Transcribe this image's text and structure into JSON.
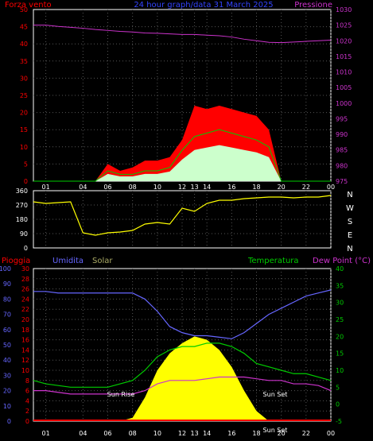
{
  "header": {
    "left_title": "Forza vento",
    "center_title": "24 hour graph/data  31 March 2025",
    "right_title": "Pressione"
  },
  "colors": {
    "wind_gust": "#ff0000",
    "wind_avg": "#00cc00",
    "wind_fill": "#ccffcc",
    "pressure": "#cc33cc",
    "direction": "#ffff00",
    "humidity": "#6666ff",
    "temperature": "#00cc00",
    "dewpoint": "#cc33cc",
    "solar": "#ffff00",
    "rain": "#ff0000",
    "axis_left": "#ff0000",
    "axis_right_pressure": "#cc33cc",
    "axis_right_temp": "#00cc00",
    "axis_humidity": "#6666ff",
    "frame": "#ffffff"
  },
  "x_ticks": [
    "01",
    "04",
    "06",
    "08",
    "10",
    "12",
    "13",
    "14",
    "16",
    "18",
    "20",
    "22",
    "00"
  ],
  "chart_data": [
    {
      "type": "line",
      "title": "",
      "panel": "wind-pressure",
      "ylabel": "Forza vento",
      "ylabel_right": "Pressione",
      "ylim": [
        0,
        50
      ],
      "ylim_right": [
        975,
        1030
      ],
      "yticks_left": [
        0,
        5,
        10,
        15,
        20,
        25,
        30,
        35,
        40,
        45,
        50
      ],
      "yticks_right": [
        975,
        980,
        985,
        990,
        995,
        1000,
        1005,
        1010,
        1015,
        1020,
        1025,
        1030
      ],
      "x": [
        0,
        1,
        2,
        3,
        4,
        5,
        6,
        7,
        8,
        9,
        10,
        11,
        12,
        13,
        14,
        15,
        16,
        17,
        18,
        19,
        20,
        21,
        22,
        23,
        24
      ],
      "series": [
        {
          "name": "gust",
          "axis": "left",
          "values": [
            0,
            0,
            0,
            0,
            0,
            0,
            5,
            3,
            4,
            6,
            6,
            7,
            12,
            22,
            21,
            22,
            21,
            20,
            19,
            15,
            0,
            0,
            0,
            0,
            0
          ]
        },
        {
          "name": "average",
          "axis": "left",
          "values": [
            0,
            0,
            0,
            0,
            0,
            0,
            3,
            2,
            2,
            3,
            3,
            4,
            9,
            13,
            14,
            15,
            14,
            13,
            12,
            10,
            0,
            0,
            0,
            0,
            0
          ]
        },
        {
          "name": "pressure",
          "axis": "right",
          "values": [
            1025,
            1025,
            1024.6,
            1024.3,
            1024,
            1023.6,
            1023.3,
            1023,
            1022.8,
            1022.5,
            1022.4,
            1022.2,
            1022,
            1022,
            1021.8,
            1021.6,
            1021.2,
            1020.5,
            1020,
            1019.5,
            1019.4,
            1019.6,
            1019.8,
            1020,
            1020.2
          ]
        }
      ],
      "grid": true
    },
    {
      "type": "line",
      "title": "",
      "panel": "wind-direction",
      "ylim": [
        0,
        360
      ],
      "yticks_left": [
        0,
        90,
        180,
        270,
        360
      ],
      "direction_labels": [
        "N",
        "W",
        "S",
        "E",
        "N"
      ],
      "x": [
        0,
        1,
        2,
        3,
        4,
        5,
        6,
        7,
        8,
        9,
        10,
        11,
        12,
        13,
        14,
        15,
        16,
        17,
        18,
        19,
        20,
        21,
        22,
        23,
        24
      ],
      "series": [
        {
          "name": "direction",
          "values": [
            290,
            280,
            285,
            290,
            95,
            80,
            95,
            100,
            110,
            150,
            160,
            150,
            250,
            230,
            280,
            300,
            300,
            310,
            315,
            320,
            320,
            315,
            320,
            320,
            330
          ]
        }
      ],
      "grid": true
    },
    {
      "type": "line",
      "title": "",
      "panel": "rain-humidity-solar-temperature",
      "labels": {
        "rain": "Pioggia",
        "humidity": "Umidita",
        "solar": "Solar",
        "temperature": "Temperatura",
        "dewpoint": "Dew Point (°C)"
      },
      "ylim_humidity": [
        0,
        100
      ],
      "ylim_rain": [
        0,
        30
      ],
      "ylim_temp": [
        -5,
        40
      ],
      "yticks_humidity": [
        0,
        10,
        20,
        30,
        40,
        50,
        60,
        70,
        80,
        90,
        100
      ],
      "yticks_rain": [
        0,
        2,
        4,
        6,
        8,
        10,
        12,
        14,
        16,
        18,
        20,
        22,
        24,
        26,
        28,
        30
      ],
      "yticks_temp": [
        -5,
        0,
        5,
        10,
        15,
        20,
        25,
        30,
        35,
        40
      ],
      "x": [
        0,
        1,
        2,
        3,
        4,
        5,
        6,
        7,
        8,
        9,
        10,
        11,
        12,
        13,
        14,
        15,
        16,
        17,
        18,
        19,
        20,
        21,
        22,
        23,
        24
      ],
      "series": [
        {
          "name": "humidity",
          "axis": "humidity",
          "values": [
            85,
            85,
            84,
            84,
            84,
            84,
            84,
            84,
            84,
            80,
            72,
            62,
            58,
            56,
            56,
            55,
            54,
            58,
            64,
            70,
            74,
            78,
            82,
            84,
            86
          ]
        },
        {
          "name": "temperature",
          "axis": "temp",
          "values": [
            7,
            6,
            5.5,
            5,
            5,
            5,
            5,
            6,
            7,
            10,
            14,
            16,
            17,
            17,
            18,
            18,
            17,
            15,
            12,
            11,
            10,
            9,
            9,
            8,
            7
          ]
        },
        {
          "name": "dewpoint",
          "axis": "temp",
          "values": [
            4,
            4,
            3.5,
            3,
            3,
            3,
            3,
            3,
            3,
            4,
            6,
            7,
            7,
            7,
            7.5,
            8,
            8,
            8,
            7.5,
            7,
            7,
            6,
            6,
            5.5,
            4
          ]
        },
        {
          "name": "solar",
          "axis": "temp",
          "values": [
            -5,
            -5,
            -5,
            -5,
            -5,
            -5,
            -5,
            -5,
            -4,
            2,
            10,
            15,
            18,
            20,
            19,
            16,
            11,
            4,
            -2,
            -5,
            -5,
            -5,
            -5,
            -5,
            -5
          ]
        },
        {
          "name": "rain",
          "axis": "rain",
          "values": [
            0,
            0,
            0,
            0,
            0,
            0,
            0,
            0,
            0,
            0,
            0,
            0,
            0,
            0,
            0,
            0,
            0,
            0,
            0,
            0,
            0,
            0,
            0,
            0,
            0
          ]
        }
      ],
      "annotations": {
        "sun_rise": "Sun Rise",
        "sun_set": "Sun Set",
        "sun_set_alt": "Sun Set"
      },
      "grid": true
    }
  ]
}
